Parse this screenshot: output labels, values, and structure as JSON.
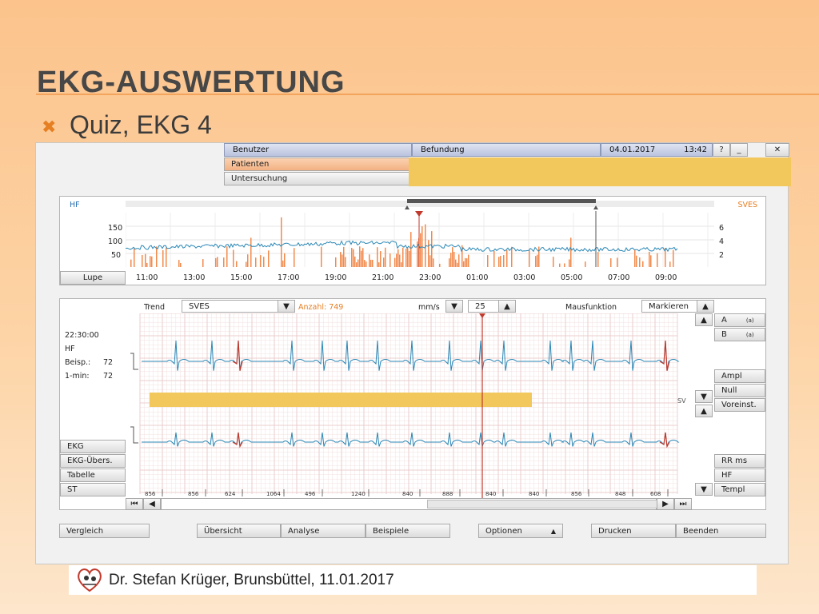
{
  "slide": {
    "title": "EKG-AUSWERTUNG",
    "bullet": "Quiz, EKG 4",
    "footer": "Dr. Stefan Krüger, Brunsbüttel, 11.01.2017"
  },
  "app": {
    "menu": {
      "benutzer": "Benutzer",
      "patienten": "Patienten",
      "untersuchung": "Untersuchung",
      "befundung": "Befundung",
      "date": "04.01.2017",
      "time": "13:42",
      "help": "?",
      "minimize": "_",
      "close": "✕"
    },
    "trend": {
      "hf_label": "HF",
      "sves_label": "SVES",
      "y_left": [
        "150",
        "100",
        "50"
      ],
      "y_right": [
        "6",
        "4",
        "2"
      ],
      "times": [
        "11:00",
        "13:00",
        "15:00",
        "17:00",
        "19:00",
        "21:00",
        "23:00",
        "01:00",
        "03:00",
        "05:00",
        "07:00",
        "09:00"
      ],
      "lupe": "Lupe"
    },
    "toolbar": {
      "trend": "Trend",
      "select_value": "SVES",
      "anzahl": "Anzahl: 749",
      "mms": "mm/s",
      "speed": "25",
      "mausfunktion": "Mausfunktion",
      "markieren": "Markieren"
    },
    "info": {
      "time": "22:30:00",
      "hf": "HF",
      "beisp_label": "Beisp.:",
      "beisp_value": "72",
      "min_label": "1-min:",
      "min_value": "72"
    },
    "side_tabs": [
      "EKG",
      "EKG-Übers.",
      "Tabelle",
      "ST"
    ],
    "rr_values": [
      "856",
      "856",
      "624",
      "1064",
      "496",
      "1240",
      "840",
      "888",
      "840",
      "840",
      "856",
      "848",
      "608"
    ],
    "sv_label": "SV",
    "right_buttons": {
      "a": "A",
      "a_sub": "(a)",
      "b": "B",
      "b_sub": "(a)",
      "ampl": "Ampl",
      "null": "Null",
      "voreinst": "Voreinst.",
      "rr": "RR ms",
      "hf": "HF",
      "templ": "Templ"
    },
    "bottom_buttons": {
      "vergleich": "Vergleich",
      "uebersicht": "Übersicht",
      "analyse": "Analyse",
      "beispiele": "Beispiele",
      "optionen": "Optionen",
      "drucken": "Drucken",
      "beenden": "Beenden"
    }
  },
  "colors": {
    "accent": "#e67e22",
    "trace": "#2a87b6",
    "trace_marked": "#c0392b",
    "trend_bars": "#f28a4c",
    "redaction": "#f2c85c"
  }
}
